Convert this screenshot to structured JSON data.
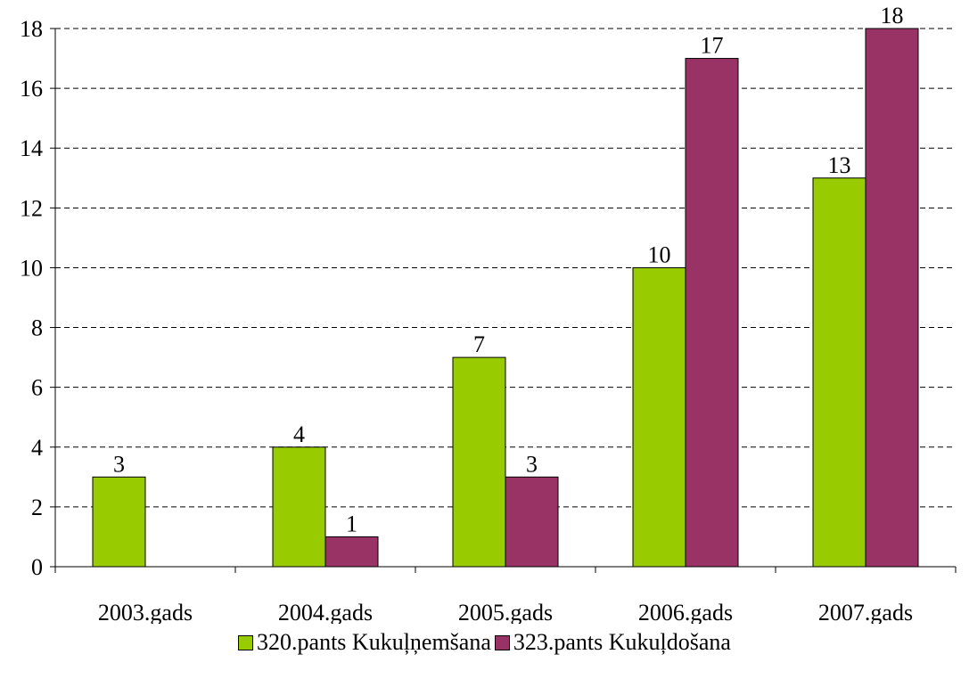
{
  "chart_data": {
    "type": "bar",
    "categories": [
      "2003.gads",
      "2004.gads",
      "2005.gads",
      "2006.gads",
      "2007.gads"
    ],
    "series": [
      {
        "name": "320.pants Kukuļņemšana",
        "values": [
          3,
          4,
          7,
          10,
          13
        ],
        "color": "#99cc00"
      },
      {
        "name": "323.pants Kukuļdošana",
        "values": [
          null,
          1,
          3,
          17,
          18
        ],
        "color": "#993366"
      }
    ],
    "ylim": [
      0,
      18
    ],
    "yticks": [
      0,
      2,
      4,
      6,
      8,
      10,
      12,
      14,
      16,
      18
    ],
    "grid": true,
    "grid_style": "dashed",
    "legend_position": "bottom",
    "data_labels": true,
    "title": "",
    "xlabel": "",
    "ylabel": ""
  }
}
